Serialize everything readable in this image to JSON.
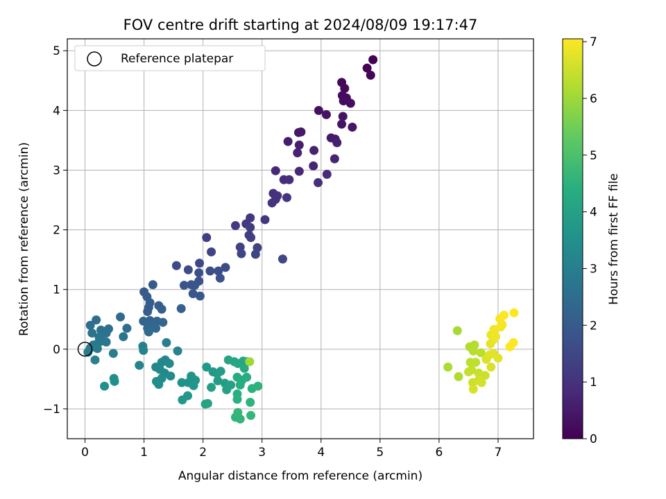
{
  "chart_data": {
    "type": "scatter",
    "title": "FOV centre drift starting at 2024/08/09 19:17:47",
    "xlabel": "Angular distance from reference (arcmin)",
    "ylabel": "Rotation from reference (arcmin)",
    "xlim": [
      -0.3,
      7.6
    ],
    "ylim": [
      -1.5,
      5.2
    ],
    "xticks": [
      0,
      1,
      2,
      3,
      4,
      5,
      6,
      7
    ],
    "yticks": [
      -1,
      0,
      1,
      2,
      3,
      4,
      5
    ],
    "grid": true,
    "legend": {
      "entry": "Reference platepar",
      "placement": "top-left"
    },
    "reference_point": {
      "x": 0.0,
      "y": 0.0
    },
    "colorbar": {
      "label": "Hours from first FF file",
      "range": [
        0,
        7.05
      ],
      "ticks": [
        0,
        1,
        2,
        3,
        4,
        5,
        6,
        7
      ],
      "colormap": "viridis"
    },
    "points": [
      {
        "x": 4.88,
        "y": 4.85,
        "c": 0.02
      },
      {
        "x": 4.78,
        "y": 4.71,
        "c": 0.05
      },
      {
        "x": 4.84,
        "y": 4.59,
        "c": 0.08
      },
      {
        "x": 4.35,
        "y": 4.47,
        "c": 0.12
      },
      {
        "x": 4.4,
        "y": 4.37,
        "c": 0.15
      },
      {
        "x": 4.36,
        "y": 4.25,
        "c": 0.18
      },
      {
        "x": 4.43,
        "y": 4.21,
        "c": 0.21
      },
      {
        "x": 4.38,
        "y": 4.16,
        "c": 0.24
      },
      {
        "x": 4.5,
        "y": 4.12,
        "c": 0.27
      },
      {
        "x": 3.96,
        "y": 4.0,
        "c": 0.3
      },
      {
        "x": 4.09,
        "y": 3.93,
        "c": 0.33
      },
      {
        "x": 4.37,
        "y": 3.9,
        "c": 0.36
      },
      {
        "x": 4.35,
        "y": 3.77,
        "c": 0.39
      },
      {
        "x": 4.53,
        "y": 3.72,
        "c": 0.42
      },
      {
        "x": 3.62,
        "y": 3.63,
        "c": 0.45
      },
      {
        "x": 3.66,
        "y": 3.64,
        "c": 0.48
      },
      {
        "x": 4.17,
        "y": 3.54,
        "c": 0.51
      },
      {
        "x": 4.24,
        "y": 3.52,
        "c": 0.54
      },
      {
        "x": 3.44,
        "y": 3.48,
        "c": 0.57
      },
      {
        "x": 3.63,
        "y": 3.42,
        "c": 0.6
      },
      {
        "x": 4.27,
        "y": 3.46,
        "c": 0.63
      },
      {
        "x": 3.88,
        "y": 3.33,
        "c": 0.66
      },
      {
        "x": 3.6,
        "y": 3.29,
        "c": 0.69
      },
      {
        "x": 4.23,
        "y": 3.19,
        "c": 0.72
      },
      {
        "x": 3.87,
        "y": 3.07,
        "c": 0.75
      },
      {
        "x": 3.23,
        "y": 2.99,
        "c": 0.78
      },
      {
        "x": 3.63,
        "y": 2.98,
        "c": 0.81
      },
      {
        "x": 4.1,
        "y": 2.93,
        "c": 0.84
      },
      {
        "x": 3.37,
        "y": 2.84,
        "c": 0.87
      },
      {
        "x": 3.46,
        "y": 2.84,
        "c": 0.9
      },
      {
        "x": 3.95,
        "y": 2.79,
        "c": 0.93
      },
      {
        "x": 3.19,
        "y": 2.61,
        "c": 0.96
      },
      {
        "x": 3.26,
        "y": 2.57,
        "c": 0.99
      },
      {
        "x": 3.23,
        "y": 2.51,
        "c": 1.02
      },
      {
        "x": 3.42,
        "y": 2.54,
        "c": 1.05
      },
      {
        "x": 3.17,
        "y": 2.45,
        "c": 1.08
      },
      {
        "x": 2.8,
        "y": 2.2,
        "c": 1.11
      },
      {
        "x": 3.05,
        "y": 2.17,
        "c": 1.14
      },
      {
        "x": 2.73,
        "y": 2.1,
        "c": 1.17
      },
      {
        "x": 2.55,
        "y": 2.07,
        "c": 1.2
      },
      {
        "x": 2.8,
        "y": 2.04,
        "c": 1.23
      },
      {
        "x": 2.78,
        "y": 1.91,
        "c": 1.26
      },
      {
        "x": 2.81,
        "y": 1.87,
        "c": 1.29
      },
      {
        "x": 2.06,
        "y": 1.87,
        "c": 1.32
      },
      {
        "x": 2.63,
        "y": 1.71,
        "c": 1.35
      },
      {
        "x": 2.92,
        "y": 1.7,
        "c": 1.38
      },
      {
        "x": 2.14,
        "y": 1.63,
        "c": 1.41
      },
      {
        "x": 2.65,
        "y": 1.6,
        "c": 1.44
      },
      {
        "x": 2.89,
        "y": 1.59,
        "c": 1.47
      },
      {
        "x": 3.35,
        "y": 1.51,
        "c": 1.5
      },
      {
        "x": 1.94,
        "y": 1.44,
        "c": 1.53
      },
      {
        "x": 1.55,
        "y": 1.4,
        "c": 1.56
      },
      {
        "x": 2.38,
        "y": 1.37,
        "c": 1.59
      },
      {
        "x": 1.75,
        "y": 1.33,
        "c": 1.62
      },
      {
        "x": 2.12,
        "y": 1.31,
        "c": 1.65
      },
      {
        "x": 2.26,
        "y": 1.31,
        "c": 1.68
      },
      {
        "x": 1.93,
        "y": 1.28,
        "c": 1.71
      },
      {
        "x": 2.29,
        "y": 1.19,
        "c": 1.74
      },
      {
        "x": 1.93,
        "y": 1.14,
        "c": 1.77
      },
      {
        "x": 1.8,
        "y": 1.08,
        "c": 1.8
      },
      {
        "x": 1.68,
        "y": 1.07,
        "c": 1.83
      },
      {
        "x": 1.86,
        "y": 1.07,
        "c": 1.86
      },
      {
        "x": 1.83,
        "y": 0.93,
        "c": 1.89
      },
      {
        "x": 1.95,
        "y": 0.89,
        "c": 1.92
      },
      {
        "x": 1.15,
        "y": 1.08,
        "c": 1.95
      },
      {
        "x": 1.0,
        "y": 0.96,
        "c": 1.98
      },
      {
        "x": 1.05,
        "y": 0.88,
        "c": 2.01
      },
      {
        "x": 1.1,
        "y": 0.78,
        "c": 2.04
      },
      {
        "x": 1.08,
        "y": 0.7,
        "c": 2.07
      },
      {
        "x": 1.06,
        "y": 0.63,
        "c": 2.1
      },
      {
        "x": 1.25,
        "y": 0.73,
        "c": 2.13
      },
      {
        "x": 1.3,
        "y": 0.67,
        "c": 2.16
      },
      {
        "x": 1.63,
        "y": 0.68,
        "c": 2.19
      },
      {
        "x": 1.1,
        "y": 0.48,
        "c": 2.22
      },
      {
        "x": 1.22,
        "y": 0.47,
        "c": 2.25
      },
      {
        "x": 0.99,
        "y": 0.47,
        "c": 2.28
      },
      {
        "x": 1.32,
        "y": 0.45,
        "c": 2.31
      },
      {
        "x": 1.15,
        "y": 0.4,
        "c": 2.34
      },
      {
        "x": 1.06,
        "y": 0.35,
        "c": 2.37
      },
      {
        "x": 1.2,
        "y": 0.35,
        "c": 2.4
      },
      {
        "x": 1.08,
        "y": 0.29,
        "c": 2.43
      },
      {
        "x": 0.6,
        "y": 0.54,
        "c": 2.46
      },
      {
        "x": 0.19,
        "y": 0.49,
        "c": 2.49
      },
      {
        "x": 0.09,
        "y": 0.4,
        "c": 2.52
      },
      {
        "x": 0.71,
        "y": 0.35,
        "c": 2.55
      },
      {
        "x": 0.4,
        "y": 0.34,
        "c": 2.58
      },
      {
        "x": 0.27,
        "y": 0.32,
        "c": 2.61
      },
      {
        "x": 0.36,
        "y": 0.27,
        "c": 2.64
      },
      {
        "x": 0.12,
        "y": 0.27,
        "c": 2.67
      },
      {
        "x": 0.65,
        "y": 0.21,
        "c": 2.7
      },
      {
        "x": 0.24,
        "y": 0.2,
        "c": 2.73
      },
      {
        "x": 0.29,
        "y": 0.14,
        "c": 2.76
      },
      {
        "x": 0.36,
        "y": 0.12,
        "c": 2.79
      },
      {
        "x": 0.22,
        "y": 0.1,
        "c": 2.82
      },
      {
        "x": 0.14,
        "y": 0.07,
        "c": 2.85
      },
      {
        "x": 0.09,
        "y": 0.02,
        "c": 2.88
      },
      {
        "x": 0.21,
        "y": 0.01,
        "c": 2.91
      },
      {
        "x": 0.05,
        "y": -0.05,
        "c": 2.94
      },
      {
        "x": 0.48,
        "y": -0.07,
        "c": 2.97
      },
      {
        "x": 0.17,
        "y": -0.18,
        "c": 3.0
      },
      {
        "x": 1.38,
        "y": 0.11,
        "c": 3.03
      },
      {
        "x": 0.98,
        "y": 0.05,
        "c": 3.06
      },
      {
        "x": 0.99,
        "y": -0.02,
        "c": 3.09
      },
      {
        "x": 1.57,
        "y": -0.03,
        "c": 3.12
      },
      {
        "x": 0.92,
        "y": -0.27,
        "c": 3.15
      },
      {
        "x": 1.2,
        "y": -0.3,
        "c": 3.18
      },
      {
        "x": 1.3,
        "y": -0.22,
        "c": 3.21
      },
      {
        "x": 1.36,
        "y": -0.18,
        "c": 3.24
      },
      {
        "x": 1.43,
        "y": -0.24,
        "c": 3.27
      },
      {
        "x": 1.27,
        "y": -0.34,
        "c": 3.3
      },
      {
        "x": 1.35,
        "y": -0.4,
        "c": 3.33
      },
      {
        "x": 1.45,
        "y": -0.45,
        "c": 3.36
      },
      {
        "x": 1.3,
        "y": -0.49,
        "c": 3.39
      },
      {
        "x": 1.21,
        "y": -0.54,
        "c": 3.42
      },
      {
        "x": 1.25,
        "y": -0.59,
        "c": 3.45
      },
      {
        "x": 0.49,
        "y": -0.49,
        "c": 3.48
      },
      {
        "x": 0.5,
        "y": -0.54,
        "c": 3.51
      },
      {
        "x": 0.33,
        "y": -0.62,
        "c": 3.54
      },
      {
        "x": 1.64,
        "y": -0.56,
        "c": 3.57
      },
      {
        "x": 1.75,
        "y": -0.56,
        "c": 3.6
      },
      {
        "x": 1.87,
        "y": -0.52,
        "c": 3.63
      },
      {
        "x": 1.8,
        "y": -0.45,
        "c": 3.66
      },
      {
        "x": 1.84,
        "y": -0.61,
        "c": 3.69
      },
      {
        "x": 1.74,
        "y": -0.78,
        "c": 3.72
      },
      {
        "x": 1.65,
        "y": -0.85,
        "c": 3.75
      },
      {
        "x": 2.06,
        "y": -0.3,
        "c": 3.78
      },
      {
        "x": 2.17,
        "y": -0.38,
        "c": 3.81
      },
      {
        "x": 2.24,
        "y": -0.41,
        "c": 3.84
      },
      {
        "x": 2.3,
        "y": -0.37,
        "c": 3.87
      },
      {
        "x": 2.25,
        "y": -0.53,
        "c": 3.9
      },
      {
        "x": 2.37,
        "y": -0.57,
        "c": 3.93
      },
      {
        "x": 2.14,
        "y": -0.64,
        "c": 3.96
      },
      {
        "x": 2.4,
        "y": -0.68,
        "c": 3.99
      },
      {
        "x": 2.47,
        "y": -0.6,
        "c": 4.02
      },
      {
        "x": 2.04,
        "y": -0.92,
        "c": 4.05
      },
      {
        "x": 2.08,
        "y": -0.91,
        "c": 4.08
      },
      {
        "x": 2.43,
        "y": -0.18,
        "c": 4.11
      },
      {
        "x": 2.53,
        "y": -0.21,
        "c": 4.14
      },
      {
        "x": 2.59,
        "y": -0.24,
        "c": 4.17
      },
      {
        "x": 2.68,
        "y": -0.2,
        "c": 4.2
      },
      {
        "x": 2.74,
        "y": -0.21,
        "c": 4.23
      },
      {
        "x": 2.7,
        "y": -0.32,
        "c": 4.26
      },
      {
        "x": 2.58,
        "y": -0.47,
        "c": 4.29
      },
      {
        "x": 2.66,
        "y": -0.52,
        "c": 4.32
      },
      {
        "x": 2.74,
        "y": -0.47,
        "c": 4.35
      },
      {
        "x": 2.63,
        "y": -0.6,
        "c": 4.38
      },
      {
        "x": 2.58,
        "y": -0.75,
        "c": 4.41
      },
      {
        "x": 2.58,
        "y": -0.84,
        "c": 4.44
      },
      {
        "x": 2.83,
        "y": -0.66,
        "c": 4.47
      },
      {
        "x": 2.93,
        "y": -0.62,
        "c": 4.5
      },
      {
        "x": 2.8,
        "y": -0.89,
        "c": 4.53
      },
      {
        "x": 2.55,
        "y": -1.14,
        "c": 4.56
      },
      {
        "x": 2.63,
        "y": -1.17,
        "c": 4.59
      },
      {
        "x": 2.81,
        "y": -1.11,
        "c": 4.62
      },
      {
        "x": 2.59,
        "y": -1.06,
        "c": 4.65
      },
      {
        "x": 2.79,
        "y": -0.21,
        "c": 6.0
      },
      {
        "x": 6.31,
        "y": 0.31,
        "c": 6.1
      },
      {
        "x": 6.15,
        "y": -0.3,
        "c": 6.15
      },
      {
        "x": 6.33,
        "y": -0.46,
        "c": 6.18
      },
      {
        "x": 6.52,
        "y": 0.04,
        "c": 6.22
      },
      {
        "x": 6.6,
        "y": 0.07,
        "c": 6.25
      },
      {
        "x": 6.58,
        "y": -0.03,
        "c": 6.28
      },
      {
        "x": 6.71,
        "y": -0.06,
        "c": 6.31
      },
      {
        "x": 6.53,
        "y": -0.22,
        "c": 6.34
      },
      {
        "x": 6.62,
        "y": -0.22,
        "c": 6.37
      },
      {
        "x": 6.55,
        "y": -0.35,
        "c": 6.4
      },
      {
        "x": 6.5,
        "y": -0.38,
        "c": 6.43
      },
      {
        "x": 6.67,
        "y": -0.4,
        "c": 6.46
      },
      {
        "x": 6.78,
        "y": -0.44,
        "c": 6.49
      },
      {
        "x": 6.57,
        "y": -0.56,
        "c": 6.52
      },
      {
        "x": 6.67,
        "y": -0.52,
        "c": 6.55
      },
      {
        "x": 6.72,
        "y": -0.56,
        "c": 6.58
      },
      {
        "x": 6.58,
        "y": -0.67,
        "c": 6.61
      },
      {
        "x": 6.88,
        "y": -0.3,
        "c": 6.64
      },
      {
        "x": 6.8,
        "y": -0.17,
        "c": 6.67
      },
      {
        "x": 6.85,
        "y": -0.1,
        "c": 6.7
      },
      {
        "x": 6.92,
        "y": -0.07,
        "c": 6.73
      },
      {
        "x": 7.0,
        "y": -0.15,
        "c": 6.76
      },
      {
        "x": 6.87,
        "y": 0.09,
        "c": 6.79
      },
      {
        "x": 6.92,
        "y": 0.16,
        "c": 6.82
      },
      {
        "x": 6.88,
        "y": 0.24,
        "c": 6.85
      },
      {
        "x": 6.96,
        "y": 0.21,
        "c": 6.88
      },
      {
        "x": 6.93,
        "y": 0.33,
        "c": 6.91
      },
      {
        "x": 7.04,
        "y": 0.37,
        "c": 6.94
      },
      {
        "x": 7.07,
        "y": 0.41,
        "c": 6.97
      },
      {
        "x": 7.03,
        "y": 0.51,
        "c": 7.0
      },
      {
        "x": 7.1,
        "y": 0.57,
        "c": 7.02
      },
      {
        "x": 7.2,
        "y": 0.04,
        "c": 7.03
      },
      {
        "x": 7.26,
        "y": 0.11,
        "c": 7.04
      },
      {
        "x": 7.27,
        "y": 0.61,
        "c": 7.05
      }
    ]
  }
}
